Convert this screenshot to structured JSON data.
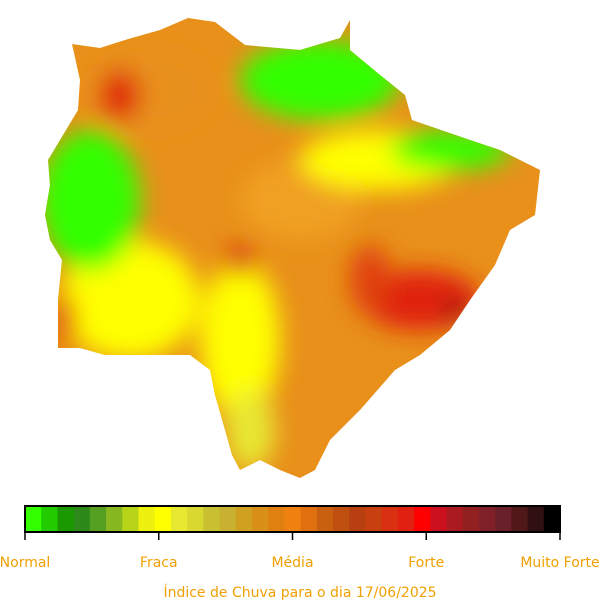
{
  "legend": {
    "colors": [
      "#33ff00",
      "#22cc00",
      "#1a9900",
      "#2d8a1a",
      "#55a020",
      "#88b820",
      "#b8d418",
      "#eef010",
      "#ffff00",
      "#e8e830",
      "#d8d830",
      "#c8c030",
      "#c8b030",
      "#d0a020",
      "#d89018",
      "#e08010",
      "#f08010",
      "#e07010",
      "#c86010",
      "#c05010",
      "#b84010",
      "#c84010",
      "#d83010",
      "#e02010",
      "#ff0000",
      "#cc1020",
      "#aa1a20",
      "#922020",
      "#802028",
      "#6a2028",
      "#501818",
      "#301010",
      "#000000"
    ],
    "labels": [
      "Normal",
      "Fraca",
      "Média",
      "Forte",
      "Muito Forte"
    ]
  },
  "caption": "Índice de Chuva para o dia 17/06/2025"
}
